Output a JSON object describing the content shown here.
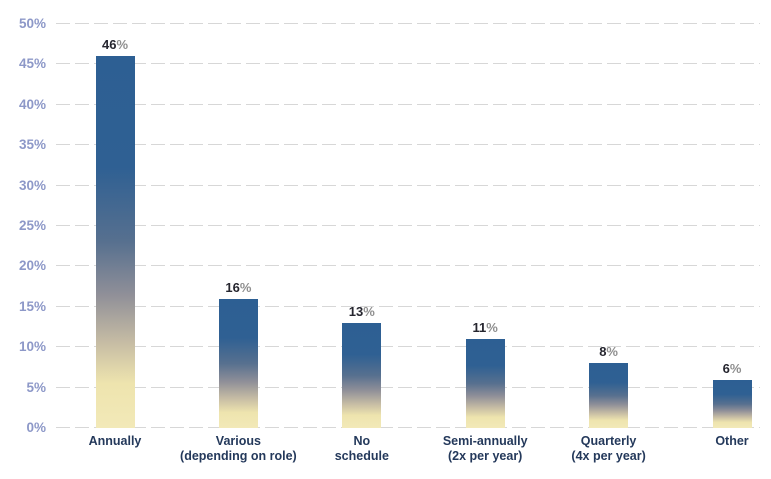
{
  "chart_data": {
    "type": "bar",
    "title": "",
    "categories": [
      "Annually",
      "Various\n(depending on role)",
      "No\nschedule",
      "Semi-annually\n(2x per year)",
      "Quarterly\n(4x per year)",
      "Other"
    ],
    "values": [
      46,
      16,
      13,
      11,
      8,
      6
    ],
    "value_suffix": "%",
    "value_labels": [
      "46%",
      "16%",
      "13%",
      "11%",
      "8%",
      "6%"
    ],
    "xlabel": "",
    "ylabel": "",
    "ylim": [
      0,
      50
    ],
    "ytick_step": 5,
    "ytick_labels": [
      "0%",
      "5%",
      "10%",
      "15%",
      "20%",
      "25%",
      "30%",
      "35%",
      "40%",
      "45%",
      "50%"
    ],
    "grid": "horizontal-dashed",
    "legend": "none",
    "bar_gradient_stops": [
      [
        "#2d5f93",
        0
      ],
      [
        "#2f6093",
        30
      ],
      [
        "#57708f",
        50
      ],
      [
        "#8f8f98",
        64
      ],
      [
        "#c6bca4",
        77
      ],
      [
        "#eee4ae",
        88
      ],
      [
        "#f2e9b8",
        100
      ]
    ],
    "colors": {
      "background": "#ffffff",
      "bar_top_blue": "#2d5f93",
      "bar_bottom_cream": "#f2e9b8",
      "gridline": "#d7d7d7",
      "ytick_label": "#8d98c8",
      "category_label": "#24395b",
      "value_number": "#26262f",
      "value_percent_sign": "#8f8f8f"
    }
  }
}
